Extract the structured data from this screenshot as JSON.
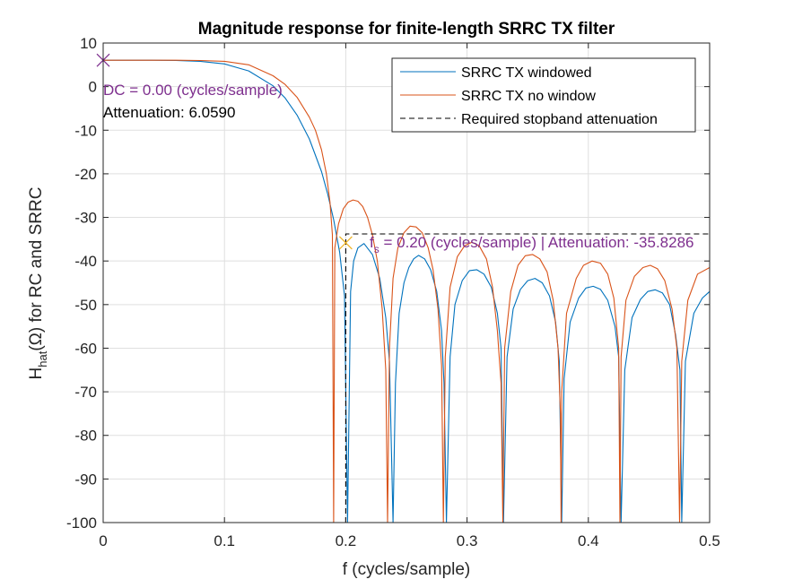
{
  "chart_data": {
    "type": "line",
    "title": "Magnitude response for finite-length SRRC TX filter",
    "xlabel": "f (cycles/sample)",
    "ylabel_parts": {
      "H": "H",
      "sub": "hat",
      "rest": "(Ω) for RC and SRRC"
    },
    "xlim": [
      0,
      0.5
    ],
    "ylim": [
      -100,
      10
    ],
    "x_ticks": [
      0,
      0.1,
      0.2,
      0.3,
      0.4,
      0.5
    ],
    "x_tick_labels": [
      "0",
      "0.1",
      "0.2",
      "0.3",
      "0.4",
      "0.5"
    ],
    "y_ticks": [
      10,
      0,
      -10,
      -20,
      -30,
      -40,
      -50,
      -60,
      -70,
      -80,
      -90,
      -100
    ],
    "y_tick_labels": [
      "10",
      "0",
      "-10",
      "-20",
      "-30",
      "-40",
      "-50",
      "-60",
      "-70",
      "-80",
      "-90",
      "-100"
    ],
    "grid": true,
    "legend_position": "top-right",
    "series": [
      {
        "name": "SRRC TX windowed",
        "color": "#0072BD",
        "style": "solid",
        "x": [
          0,
          0.02,
          0.04,
          0.06,
          0.08,
          0.1,
          0.12,
          0.14,
          0.15,
          0.16,
          0.17,
          0.18,
          0.185,
          0.19,
          0.195,
          0.199,
          0.2015,
          0.204,
          0.2065,
          0.21,
          0.215,
          0.222,
          0.228,
          0.233,
          0.236,
          0.239,
          0.241,
          0.244,
          0.248,
          0.252,
          0.256,
          0.26,
          0.265,
          0.27,
          0.275,
          0.279,
          0.281,
          0.283,
          0.286,
          0.29,
          0.296,
          0.302,
          0.308,
          0.314,
          0.32,
          0.325,
          0.328,
          0.33,
          0.333,
          0.338,
          0.344,
          0.35,
          0.356,
          0.362,
          0.368,
          0.373,
          0.376,
          0.378,
          0.38,
          0.385,
          0.392,
          0.398,
          0.404,
          0.41,
          0.416,
          0.422,
          0.425,
          0.427,
          0.43,
          0.436,
          0.443,
          0.449,
          0.455,
          0.461,
          0.467,
          0.472,
          0.4755,
          0.477,
          0.48,
          0.487,
          0.494,
          0.5
        ],
        "y": [
          6.06,
          6.06,
          6.05,
          6.0,
          5.8,
          5.2,
          3.6,
          0.2,
          -2.6,
          -6.6,
          -12.0,
          -19.5,
          -24.5,
          -30.5,
          -38.0,
          -48.0,
          -100.0,
          -47.0,
          -40.0,
          -37.0,
          -36.0,
          -38.5,
          -44.0,
          -53.0,
          -63.0,
          -100.0,
          -68.0,
          -52.0,
          -45.0,
          -41.5,
          -39.5,
          -38.7,
          -39.5,
          -42.0,
          -47.0,
          -56.0,
          -68.0,
          -100.0,
          -62.0,
          -50.0,
          -44.5,
          -42.2,
          -42.0,
          -43.0,
          -46.0,
          -52.0,
          -60.0,
          -100.0,
          -62.0,
          -51.0,
          -46.5,
          -44.5,
          -44.0,
          -45.0,
          -48.0,
          -54.0,
          -63.0,
          -100.0,
          -67.0,
          -54.0,
          -48.5,
          -46.2,
          -45.8,
          -46.5,
          -49.0,
          -55.0,
          -62.0,
          -100.0,
          -65.0,
          -53.0,
          -48.8,
          -47.0,
          -46.6,
          -47.3,
          -50.0,
          -57.0,
          -65.0,
          -100.0,
          -63.0,
          -52.0,
          -48.5,
          -47.0
        ]
      },
      {
        "name": "SRRC TX no window",
        "color": "#D95319",
        "style": "solid",
        "x": [
          0,
          0.02,
          0.04,
          0.06,
          0.08,
          0.1,
          0.12,
          0.14,
          0.15,
          0.16,
          0.17,
          0.175,
          0.18,
          0.184,
          0.187,
          0.189,
          0.19,
          0.191,
          0.194,
          0.198,
          0.202,
          0.206,
          0.21,
          0.214,
          0.218,
          0.222,
          0.226,
          0.23,
          0.233,
          0.2345,
          0.236,
          0.239,
          0.243,
          0.248,
          0.253,
          0.258,
          0.263,
          0.268,
          0.272,
          0.276,
          0.279,
          0.2805,
          0.282,
          0.286,
          0.292,
          0.298,
          0.304,
          0.31,
          0.316,
          0.321,
          0.325,
          0.328,
          0.3295,
          0.331,
          0.336,
          0.342,
          0.348,
          0.354,
          0.36,
          0.366,
          0.371,
          0.375,
          0.377,
          0.3775,
          0.378,
          0.382,
          0.39,
          0.396,
          0.403,
          0.41,
          0.416,
          0.421,
          0.425,
          0.426,
          0.427,
          0.431,
          0.438,
          0.445,
          0.451,
          0.457,
          0.463,
          0.469,
          0.473,
          0.4752,
          0.477,
          0.482,
          0.49,
          0.5
        ],
        "y": [
          6.06,
          6.06,
          6.06,
          6.05,
          6.0,
          5.8,
          5.0,
          2.5,
          0.5,
          -2.5,
          -7.0,
          -10.0,
          -14.5,
          -20.0,
          -26.5,
          -34.0,
          -100.0,
          -37.0,
          -31.5,
          -28.0,
          -26.5,
          -26.0,
          -26.3,
          -27.5,
          -30.0,
          -34.0,
          -40.0,
          -51.0,
          -65.0,
          -100.0,
          -60.0,
          -44.0,
          -37.0,
          -33.5,
          -32.0,
          -32.2,
          -33.5,
          -37.0,
          -42.0,
          -51.0,
          -64.0,
          -100.0,
          -62.0,
          -46.0,
          -39.0,
          -36.5,
          -35.7,
          -36.5,
          -39.5,
          -46.0,
          -56.0,
          -68.0,
          -100.0,
          -60.0,
          -47.0,
          -41.0,
          -38.8,
          -38.5,
          -39.5,
          -42.5,
          -49.0,
          -60.0,
          -75.0,
          -100.0,
          -70.0,
          -52.0,
          -44.0,
          -41.0,
          -40.0,
          -40.5,
          -43.0,
          -48.5,
          -60.0,
          -100.0,
          -62.0,
          -49.0,
          -43.5,
          -41.5,
          -41.0,
          -41.8,
          -44.5,
          -51.0,
          -60.0,
          -100.0,
          -63.0,
          -49.0,
          -43.0,
          -41.5
        ]
      },
      {
        "name": "Required stopband attenuation",
        "color": "#000000",
        "style": "dashed",
        "x": [
          0.2,
          0.2,
          0.5
        ],
        "y": [
          -100,
          -33.8,
          -33.8
        ]
      }
    ],
    "markers": [
      {
        "x": 0,
        "y": 6.059,
        "symbol": "x",
        "color": "#7E2F8E"
      },
      {
        "x": 0.2,
        "y": -35.8286,
        "symbol": "x",
        "color": "#EDB120"
      }
    ],
    "annotations": [
      {
        "id": "dc_label",
        "line1": "DC = 0.00 (cycles/sample)",
        "line2": "Attenuation: 6.0590"
      },
      {
        "id": "fs_label",
        "prefix": "f",
        "sub": "s",
        "suffix": " = 0.20 (cycles/sample) | Attenuation: -35.8286",
        "color": "#7E2F8E"
      }
    ]
  }
}
